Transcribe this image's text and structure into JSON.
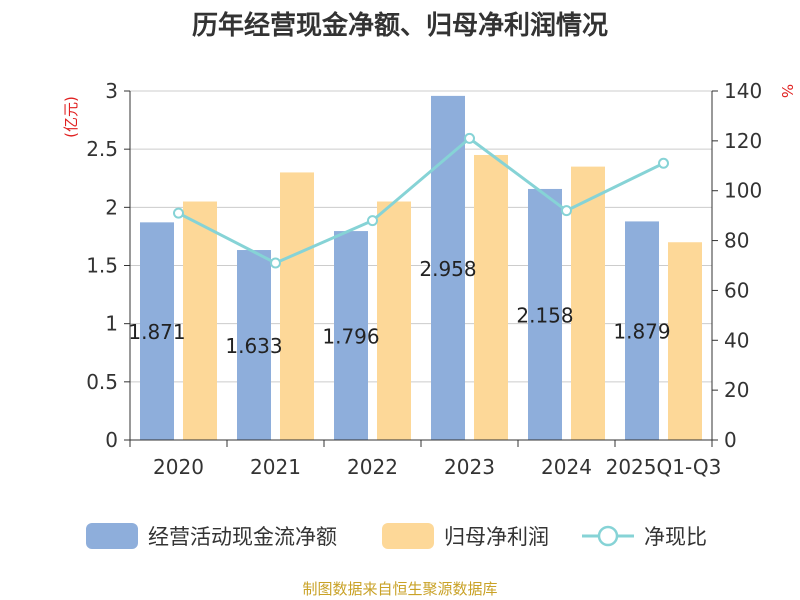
{
  "chart_data": {
    "type": "bar",
    "title": "历年经营现金净额、归母净利润情况",
    "categories": [
      "2020",
      "2021",
      "2022",
      "2023",
      "2024",
      "2025Q1-Q3"
    ],
    "series": [
      {
        "name": "经营活动现金流净额",
        "kind": "bar",
        "axis": "left",
        "color": "#8eaedb",
        "values": [
          1.871,
          1.633,
          1.796,
          2.958,
          2.158,
          1.879
        ],
        "labels": [
          "1.871",
          "1.633",
          "1.796",
          "2.958",
          "2.158",
          "1.879"
        ]
      },
      {
        "name": "归母净利润",
        "kind": "bar",
        "axis": "left",
        "color": "#fdd898",
        "values": [
          2.05,
          2.3,
          2.05,
          2.45,
          2.35,
          1.7
        ]
      },
      {
        "name": "净现比",
        "kind": "line",
        "axis": "right",
        "color": "#86d3d6",
        "values": [
          91,
          71,
          88,
          121,
          92,
          111
        ]
      }
    ],
    "y_left": {
      "unit": "(亿元)",
      "min": 0,
      "max": 3,
      "ticks": [
        0,
        0.5,
        1,
        1.5,
        2,
        2.5,
        3
      ],
      "tick_labels": [
        "0",
        "0.5",
        "1",
        "1.5",
        "2",
        "2.5",
        "3"
      ]
    },
    "y_right": {
      "unit": "%",
      "min": 0,
      "max": 140,
      "ticks": [
        0,
        20,
        40,
        60,
        80,
        100,
        120,
        140
      ],
      "tick_labels": [
        "0",
        "20",
        "40",
        "60",
        "80",
        "100",
        "120",
        "140"
      ]
    },
    "grid": true,
    "legend_position": "bottom",
    "source": "制图数据来自恒生聚源数据库"
  }
}
